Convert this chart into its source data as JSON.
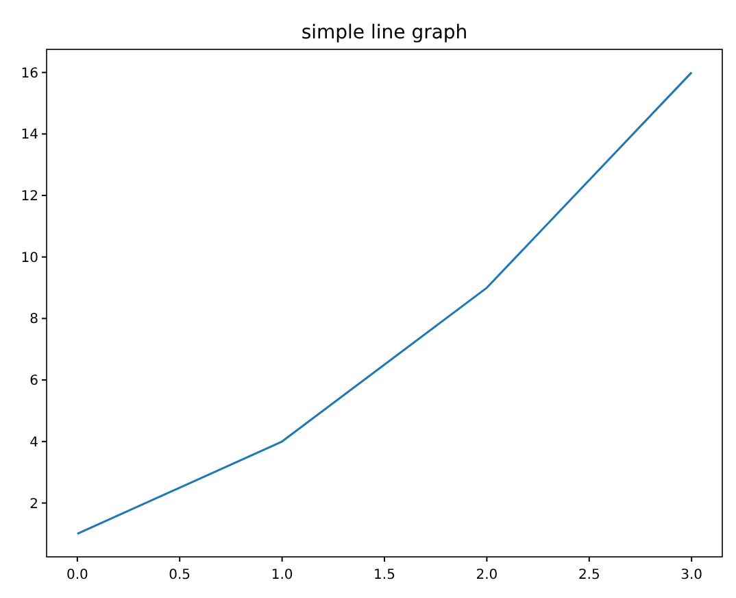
{
  "chart_data": {
    "type": "line",
    "title": "simple line graph",
    "x": [
      0,
      1,
      2,
      3
    ],
    "series": [
      {
        "color": "#1f77b4",
        "values": [
          1,
          4,
          9,
          16
        ]
      }
    ],
    "xlim": [
      -0.15,
      3.15
    ],
    "ylim": [
      0.25,
      16.75
    ],
    "xticks": [
      {
        "value": 0,
        "label": "0.0"
      },
      {
        "value": 0.5,
        "label": "0.5"
      },
      {
        "value": 1,
        "label": "1.0"
      },
      {
        "value": 1.5,
        "label": "1.5"
      },
      {
        "value": 2,
        "label": "2.0"
      },
      {
        "value": 2.5,
        "label": "2.5"
      },
      {
        "value": 3,
        "label": "3.0"
      }
    ],
    "yticks": [
      2,
      4,
      6,
      8,
      10,
      12,
      14,
      16
    ],
    "grid": false
  }
}
